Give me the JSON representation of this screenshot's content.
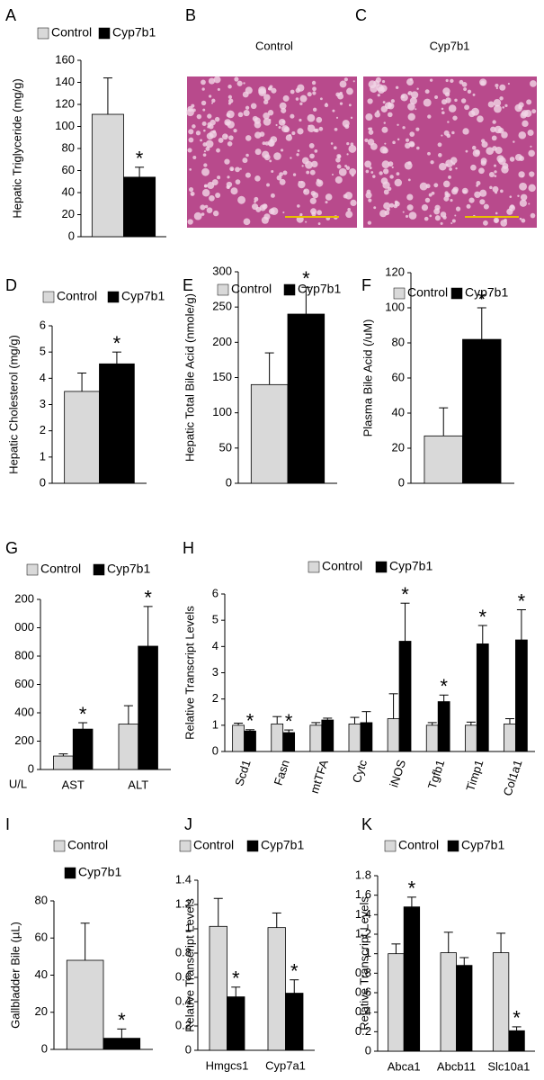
{
  "chart_data": [
    {
      "type": "bar",
      "panel": "A",
      "y_label": "Hepatic Triglyceride (mg/g)",
      "ylim": [
        0,
        160
      ],
      "yticks": [
        0,
        20,
        40,
        60,
        80,
        100,
        120,
        140,
        160
      ],
      "series": [
        {
          "name": "Control",
          "color": "#d9d9d9",
          "values": [
            111
          ],
          "errors": [
            33
          ],
          "markers": [
            null
          ]
        },
        {
          "name": "Cyp7b1",
          "color": "#000000",
          "values": [
            54
          ],
          "errors": [
            9
          ],
          "markers": [
            "*"
          ]
        }
      ]
    },
    {
      "type": "image",
      "panel": "B",
      "title": "Control"
    },
    {
      "type": "image",
      "panel": "C",
      "title": "Cyp7b1"
    },
    {
      "type": "bar",
      "panel": "D",
      "y_label": "Hepatic Cholesterol (mg/g)",
      "ylim": [
        0,
        6
      ],
      "yticks": [
        0,
        1,
        2,
        3,
        4,
        5,
        6
      ],
      "series": [
        {
          "name": "Control",
          "color": "#d9d9d9",
          "values": [
            3.5
          ],
          "errors": [
            0.7
          ],
          "markers": [
            null
          ]
        },
        {
          "name": "Cyp7b1",
          "color": "#000000",
          "values": [
            4.55
          ],
          "errors": [
            0.45
          ],
          "markers": [
            "*"
          ]
        }
      ]
    },
    {
      "type": "bar",
      "panel": "E",
      "y_label": "Hepatic Total Bile Acid (nmole/g)",
      "ylim": [
        0,
        300
      ],
      "yticks": [
        0,
        50,
        100,
        150,
        200,
        250,
        300
      ],
      "series": [
        {
          "name": "Control",
          "color": "#d9d9d9",
          "values": [
            140
          ],
          "errors": [
            45
          ],
          "markers": [
            null
          ]
        },
        {
          "name": "Cyp7b1",
          "color": "#000000",
          "values": [
            240
          ],
          "errors": [
            38
          ],
          "markers": [
            "*"
          ]
        }
      ]
    },
    {
      "type": "bar",
      "panel": "F",
      "y_label": "Plasma Bile Acid (/uM)",
      "ylim": [
        0,
        120
      ],
      "yticks": [
        0,
        20,
        40,
        60,
        80,
        100,
        120
      ],
      "series": [
        {
          "name": "Control",
          "color": "#d9d9d9",
          "values": [
            27
          ],
          "errors": [
            16
          ],
          "markers": [
            null
          ]
        },
        {
          "name": "Cyp7b1",
          "color": "#000000",
          "values": [
            82
          ],
          "errors": [
            18
          ],
          "markers": [
            "*"
          ]
        }
      ]
    },
    {
      "type": "bar",
      "panel": "G",
      "unit_label": "U/L",
      "categories": [
        "AST",
        "ALT"
      ],
      "ylim": [
        0,
        1200
      ],
      "yticks": [
        0,
        200,
        400,
        600,
        800,
        {
          "value": 1000,
          "label": "000"
        },
        {
          "value": 1200,
          "label": "200"
        }
      ],
      "series": [
        {
          "name": "Control",
          "color": "#d9d9d9",
          "values": [
            95,
            320
          ],
          "errors": [
            15,
            130
          ],
          "markers": [
            null,
            null
          ]
        },
        {
          "name": "Cyp7b1",
          "color": "#000000",
          "values": [
            285,
            870
          ],
          "errors": [
            45,
            280
          ],
          "markers": [
            "*",
            "*"
          ]
        }
      ]
    },
    {
      "type": "bar",
      "panel": "H",
      "y_label": "Relative Transcript Levels",
      "categories": [
        "Scd1",
        "Fasn",
        "mtTFA",
        "Cytc",
        "iNOS",
        "Tgfb1",
        "Timp1",
        "Col1a1"
      ],
      "ylim": [
        0,
        6
      ],
      "yticks": [
        0,
        1,
        2,
        3,
        4,
        5,
        6
      ],
      "series": [
        {
          "name": "Control",
          "color": "#d9d9d9",
          "values": [
            1,
            1.05,
            1,
            1.05,
            1.25,
            1,
            1,
            1.05
          ],
          "errors": [
            0.08,
            0.28,
            0.1,
            0.25,
            0.95,
            0.1,
            0.12,
            0.2
          ],
          "markers": [
            null,
            null,
            null,
            null,
            null,
            null,
            null,
            null
          ]
        },
        {
          "name": "Cyp7b1",
          "color": "#000000",
          "values": [
            0.78,
            0.72,
            1.2,
            1.1,
            4.2,
            1.9,
            4.1,
            4.25
          ],
          "errors": [
            0.05,
            0.1,
            0.07,
            0.42,
            1.45,
            0.25,
            0.7,
            1.15
          ],
          "markers": [
            "*",
            "*",
            null,
            null,
            "*",
            "*",
            "*",
            "*"
          ]
        }
      ]
    },
    {
      "type": "bar",
      "panel": "I",
      "y_label": "Gallbladder Bile (µL)",
      "ylim": [
        0,
        80
      ],
      "yticks": [
        0,
        20,
        40,
        60,
        80
      ],
      "series": [
        {
          "name": "Control",
          "color": "#d9d9d9",
          "values": [
            48
          ],
          "errors": [
            20
          ],
          "markers": [
            null
          ]
        },
        {
          "name": "Cyp7b1",
          "color": "#000000",
          "values": [
            6
          ],
          "errors": [
            5
          ],
          "markers": [
            "*"
          ]
        }
      ]
    },
    {
      "type": "bar",
      "panel": "J",
      "y_label": "Relative Transcript Levels",
      "categories": [
        "Hmgcs1",
        "Cyp7a1"
      ],
      "ylim": [
        0,
        1.4
      ],
      "yticks": [
        0,
        0.2,
        0.4,
        0.6,
        0.8,
        1,
        1.2,
        1.4
      ],
      "series": [
        {
          "name": "Control",
          "color": "#d9d9d9",
          "values": [
            1.02,
            1.01
          ],
          "errors": [
            0.23,
            0.12
          ],
          "markers": [
            null,
            null
          ]
        },
        {
          "name": "Cyp7b1",
          "color": "#000000",
          "values": [
            0.44,
            0.47
          ],
          "errors": [
            0.08,
            0.11
          ],
          "markers": [
            "*",
            "*"
          ]
        }
      ]
    },
    {
      "type": "bar",
      "panel": "K",
      "y_label": "Relative Transcript Levels",
      "categories": [
        "Abca1",
        "Abcb11",
        "Slc10a1"
      ],
      "ylim": [
        0,
        1.8
      ],
      "yticks": [
        0,
        0.2,
        0.4,
        0.6,
        0.8,
        1,
        1.2,
        1.4,
        1.6,
        1.8
      ],
      "series": [
        {
          "name": "Control",
          "color": "#d9d9d9",
          "values": [
            1.0,
            1.01,
            1.01
          ],
          "errors": [
            0.1,
            0.21,
            0.2
          ],
          "markers": [
            null,
            null,
            null
          ]
        },
        {
          "name": "Cyp7b1",
          "color": "#000000",
          "values": [
            1.48,
            0.88,
            0.21
          ],
          "errors": [
            0.1,
            0.08,
            0.04
          ],
          "markers": [
            "*",
            null,
            "*"
          ]
        }
      ]
    }
  ]
}
